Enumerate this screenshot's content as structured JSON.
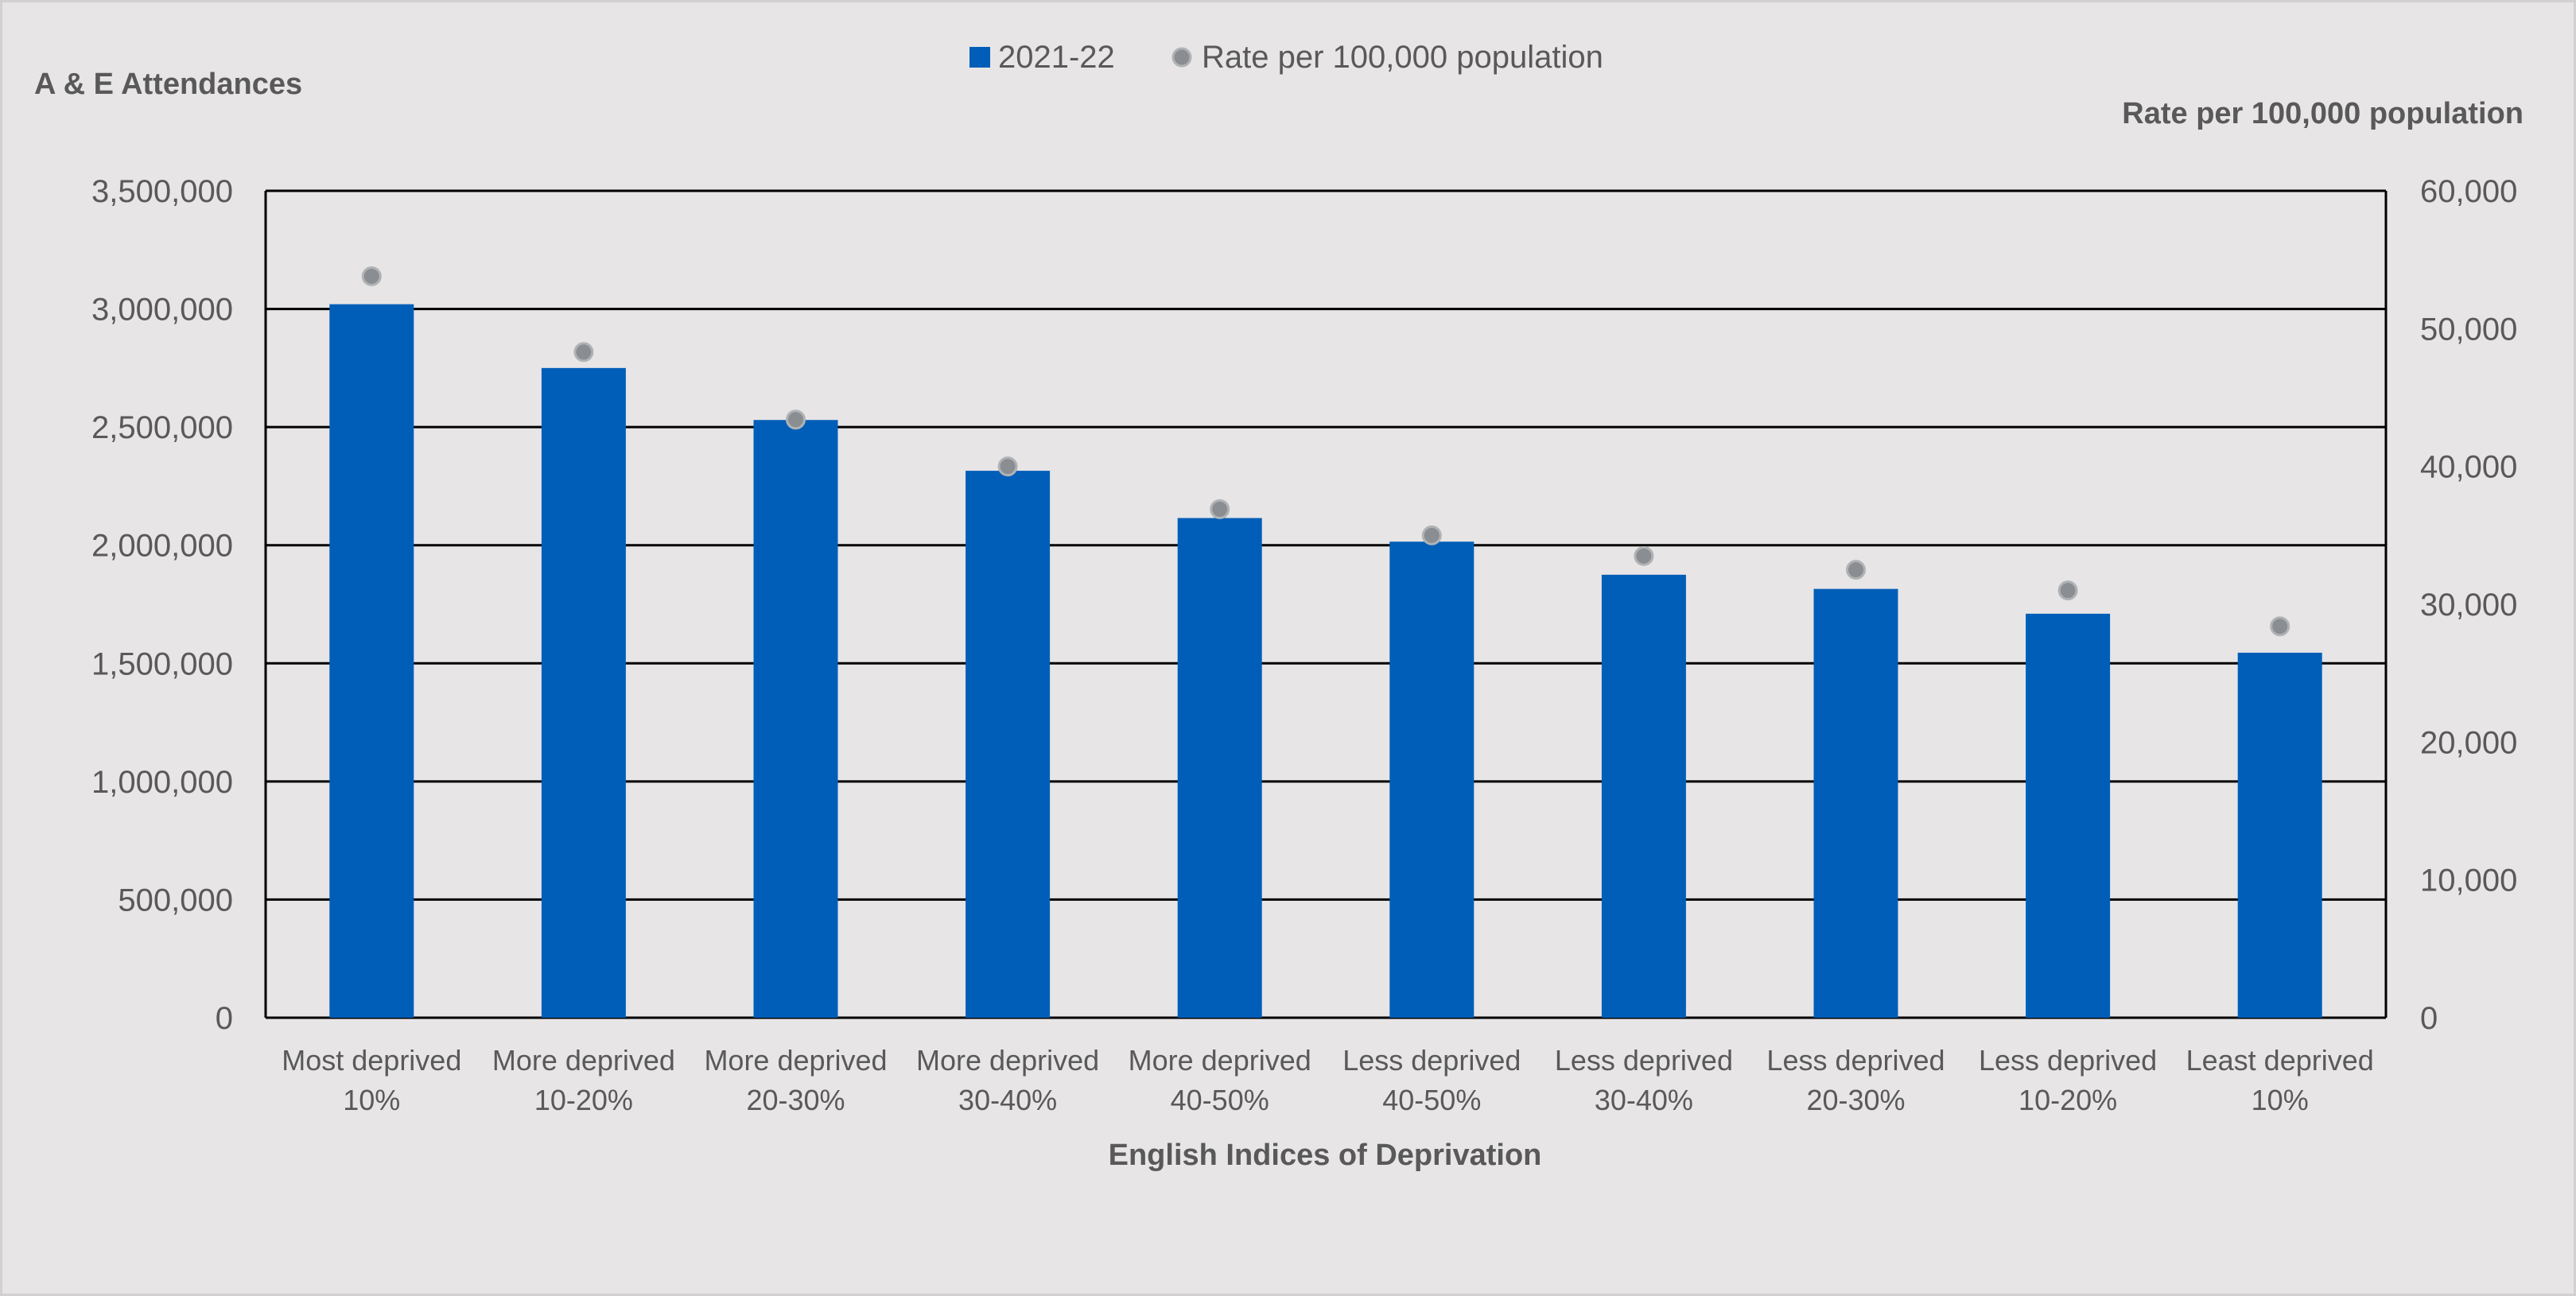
{
  "colors": {
    "background": "#e7e5e6",
    "bar": "#005eb8",
    "dot": "#8a8d91",
    "dot_stroke": "#b0b3b6",
    "grid": "#000000",
    "text": "#595959"
  },
  "chart_data": {
    "type": "bar",
    "categories": [
      [
        "Most deprived",
        "10%"
      ],
      [
        "More deprived",
        "10-20%"
      ],
      [
        "More deprived",
        "20-30%"
      ],
      [
        "More deprived",
        "30-40%"
      ],
      [
        "More deprived",
        "40-50%"
      ],
      [
        "Less deprived",
        "40-50%"
      ],
      [
        "Less deprived",
        "30-40%"
      ],
      [
        "Less deprived",
        "20-30%"
      ],
      [
        "Less deprived",
        "10-20%"
      ],
      [
        "Least deprived",
        "10%"
      ]
    ],
    "series": [
      {
        "name": "2021-22",
        "type": "bar",
        "axis": "left",
        "values": [
          3020000,
          2750000,
          2530000,
          2315000,
          2115000,
          2015000,
          1875000,
          1815000,
          1710000,
          1545000
        ]
      },
      {
        "name": "Rate per 100,000 population",
        "type": "scatter",
        "axis": "right",
        "values": [
          53800,
          48300,
          43400,
          40000,
          36900,
          35000,
          33500,
          32500,
          31000,
          28400
        ]
      }
    ],
    "xlabel": "English Indices of Deprivation",
    "ylabel": "A & E Attendances",
    "y2label": "Rate per 100,000 population",
    "ylim": [
      0,
      3500000
    ],
    "y2lim": [
      0,
      60000
    ],
    "yticks": [
      "3,500,000",
      "3,000,000",
      "2,500,000",
      "2,000,000",
      "1,500,000",
      "1,000,000",
      "500,000",
      "0"
    ],
    "y2ticks": [
      "60,000",
      "50,000",
      "40,000",
      "30,000",
      "20,000",
      "10,000",
      "0"
    ],
    "grid": true,
    "legend_position": "top-center"
  }
}
